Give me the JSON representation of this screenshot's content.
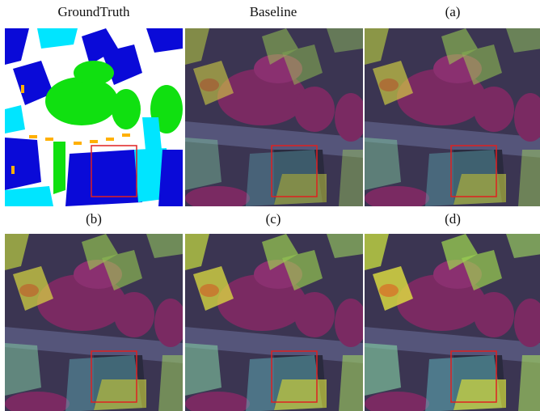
{
  "panels": [
    {
      "label": "GroundTruth"
    },
    {
      "label": "Baseline"
    },
    {
      "label": "(a)"
    },
    {
      "label": "(b)"
    },
    {
      "label": "(c)"
    },
    {
      "label": "(d)"
    }
  ]
}
